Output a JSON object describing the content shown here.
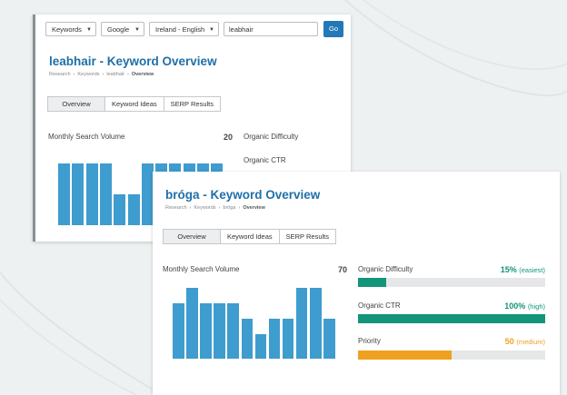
{
  "colors": {
    "accent": "#1f6fa8",
    "bar": "#3f9cce",
    "green": "#13957a",
    "orange": "#f0a021"
  },
  "back_panel": {
    "search": {
      "type_select": "Keywords",
      "engine_select": "Google",
      "locale_select": "Ireland - English",
      "keyword_value": "leabhair",
      "go_label": "Go"
    },
    "title": "leabhair - Keyword Overview",
    "breadcrumb": [
      "Research",
      "Keywords",
      "leabhair",
      "Overview"
    ],
    "tabs": [
      "Overview",
      "Keyword Ideas",
      "SERP Results"
    ],
    "volume_label": "Monthly Search Volume",
    "volume_value": "20",
    "difficulty_label": "Organic Difficulty",
    "ctr_label": "Organic CTR",
    "volume_bars": [
      100,
      100,
      100,
      100,
      50,
      50,
      100,
      100,
      100,
      100,
      100,
      100
    ]
  },
  "front_panel": {
    "title": "bróga - Keyword Overview",
    "breadcrumb": [
      "Research",
      "Keywords",
      "bróga",
      "Overview"
    ],
    "tabs": [
      "Overview",
      "Keyword Ideas",
      "SERP Results"
    ],
    "volume_label": "Monthly Search Volume",
    "volume_value": "70",
    "volume_bars": [
      78,
      100,
      78,
      78,
      78,
      56,
      35,
      56,
      56,
      100,
      100,
      56
    ],
    "metrics": [
      {
        "label": "Organic Difficulty",
        "value": "15%",
        "note": "(easiest)",
        "percent": 15,
        "color": "#13957a"
      },
      {
        "label": "Organic CTR",
        "value": "100%",
        "note": "(high)",
        "percent": 100,
        "color": "#13957a"
      },
      {
        "label": "Priority",
        "value": "50",
        "note": "(medium)",
        "percent": 50,
        "color": "#f0a021"
      }
    ]
  }
}
